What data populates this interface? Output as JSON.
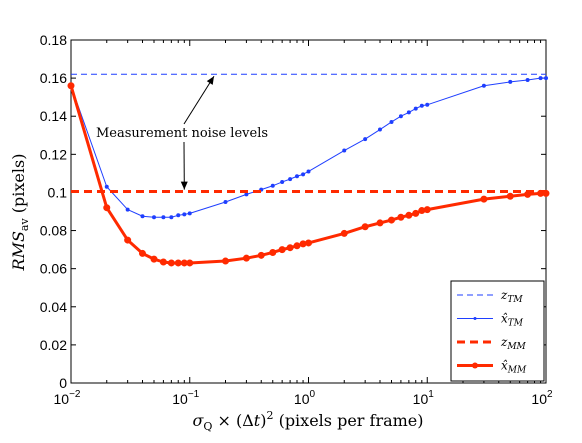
{
  "chart_data": {
    "type": "line",
    "xscale": "log",
    "xlim": [
      0.01,
      100
    ],
    "ylim": [
      0,
      0.18
    ],
    "xlabel": "σ_Q × (Δt)^2 (pixels per frame)",
    "xlabel_parts": {
      "symbol": "σ",
      "sub": "Q",
      "times": " × (Δ",
      "t": "t",
      "paren": ")",
      "sup": "2",
      "unit": " (pixels per frame)"
    },
    "ylabel": "RMS_av (pixels)",
    "ylabel_parts": {
      "main": "RMS",
      "sub": "av",
      "unit": " (pixels)"
    },
    "xticks": [
      {
        "value": 0.01,
        "base": "10",
        "exp": "−2"
      },
      {
        "value": 0.1,
        "base": "10",
        "exp": "−1"
      },
      {
        "value": 1,
        "base": "10",
        "exp": "0"
      },
      {
        "value": 10,
        "base": "10",
        "exp": "1"
      },
      {
        "value": 100,
        "base": "10",
        "exp": "2"
      }
    ],
    "yticks": [
      {
        "value": 0,
        "label": "0"
      },
      {
        "value": 0.02,
        "label": "0.02"
      },
      {
        "value": 0.04,
        "label": "0.04"
      },
      {
        "value": 0.06,
        "label": "0.06"
      },
      {
        "value": 0.08,
        "label": "0.08"
      },
      {
        "value": 0.1,
        "label": "0.1"
      },
      {
        "value": 0.12,
        "label": "0.12"
      },
      {
        "value": 0.14,
        "label": "0.14"
      },
      {
        "value": 0.16,
        "label": "0.16"
      },
      {
        "value": 0.18,
        "label": "0.18"
      }
    ],
    "grid": false,
    "legend_position": "bottom-right",
    "annotation": {
      "text": "Measurement noise levels",
      "arrow_targets": [
        {
          "x": 0.16,
          "y": 0.161
        },
        {
          "x": 0.09,
          "y": 0.1015
        }
      ]
    },
    "series": [
      {
        "name": "z_TM",
        "legend_main": "z",
        "legend_sub": "TM",
        "style": "dashed",
        "color": "#1f3fff",
        "width": 1,
        "markers": false,
        "x": [
          0.01,
          100
        ],
        "y": [
          0.162,
          0.162
        ]
      },
      {
        "name": "x̂_TM",
        "legend_main": "x̂",
        "legend_sub": "TM",
        "style": "solid",
        "color": "#1f3fff",
        "width": 1,
        "markers": true,
        "marker_size": 1.5,
        "x": [
          0.01,
          0.02,
          0.03,
          0.04,
          0.05,
          0.06,
          0.07,
          0.08,
          0.09,
          0.1,
          0.2,
          0.3,
          0.4,
          0.5,
          0.6,
          0.7,
          0.8,
          0.9,
          1,
          2,
          3,
          4,
          5,
          6,
          7,
          8,
          9,
          10,
          30,
          50,
          70,
          90,
          100
        ],
        "y": [
          0.156,
          0.103,
          0.091,
          0.0875,
          0.087,
          0.087,
          0.087,
          0.088,
          0.0885,
          0.089,
          0.095,
          0.099,
          0.1015,
          0.1035,
          0.1055,
          0.107,
          0.1085,
          0.1095,
          0.111,
          0.122,
          0.128,
          0.133,
          0.137,
          0.14,
          0.142,
          0.144,
          0.1455,
          0.146,
          0.156,
          0.158,
          0.159,
          0.16,
          0.16
        ]
      },
      {
        "name": "z_MM",
        "legend_main": "z",
        "legend_sub": "MM",
        "style": "dashed",
        "color": "#ff2a00",
        "width": 3,
        "markers": false,
        "x": [
          0.01,
          100
        ],
        "y": [
          0.1005,
          0.1005
        ]
      },
      {
        "name": "x̂_MM",
        "legend_main": "x̂",
        "legend_sub": "MM",
        "style": "solid",
        "color": "#ff2a00",
        "width": 3,
        "markers": true,
        "marker_size": 3,
        "x": [
          0.01,
          0.02,
          0.03,
          0.04,
          0.05,
          0.06,
          0.07,
          0.08,
          0.09,
          0.1,
          0.2,
          0.3,
          0.4,
          0.5,
          0.6,
          0.7,
          0.8,
          0.9,
          1,
          2,
          3,
          4,
          5,
          6,
          7,
          8,
          9,
          10,
          30,
          50,
          70,
          90,
          100
        ],
        "y": [
          0.156,
          0.092,
          0.075,
          0.068,
          0.065,
          0.0635,
          0.063,
          0.063,
          0.063,
          0.063,
          0.064,
          0.0655,
          0.067,
          0.0685,
          0.07,
          0.071,
          0.072,
          0.073,
          0.0735,
          0.0785,
          0.082,
          0.084,
          0.0855,
          0.087,
          0.088,
          0.089,
          0.0905,
          0.091,
          0.0965,
          0.098,
          0.099,
          0.0995,
          0.0995
        ]
      }
    ]
  }
}
